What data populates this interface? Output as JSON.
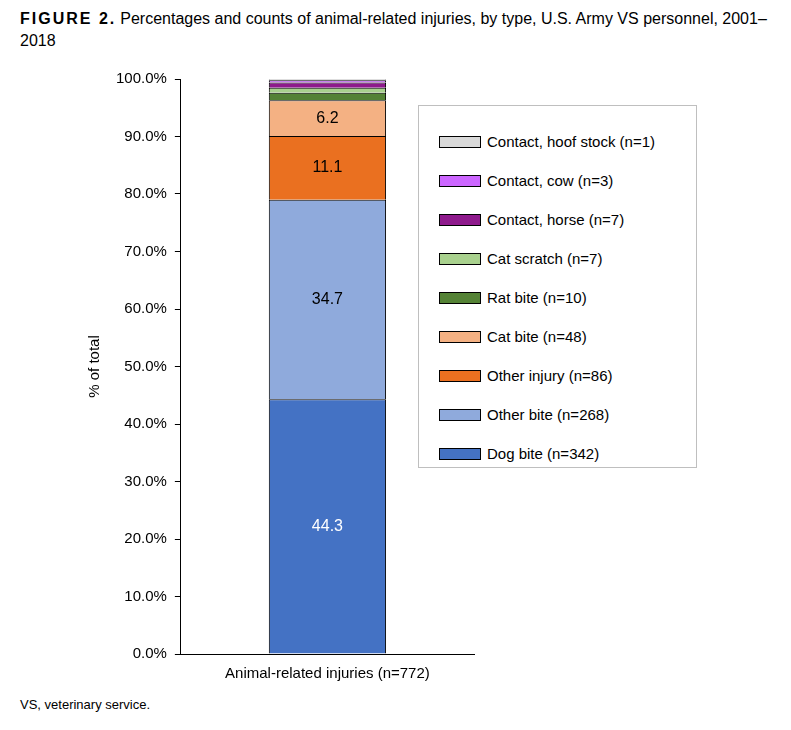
{
  "chart_data": {
    "type": "bar",
    "figure_label": "FIGURE 2.",
    "title": "Percentages and counts of animal-related injuries, by type, U.S. Army VS personnel, 2001–2018",
    "y_label": "% of total",
    "footnote": "VS, veterinary service.",
    "categories": [
      "Animal-related injuries (n=772)"
    ],
    "stacked": true,
    "grid": false,
    "ylim": [
      0,
      100
    ],
    "yticks": [
      {
        "value": 0,
        "label": "0.0%"
      },
      {
        "value": 10,
        "label": "10.0%"
      },
      {
        "value": 20,
        "label": "20.0%"
      },
      {
        "value": 30,
        "label": "30.0%"
      },
      {
        "value": 40,
        "label": "40.0%"
      },
      {
        "value": 50,
        "label": "50.0%"
      },
      {
        "value": 60,
        "label": "60.0%"
      },
      {
        "value": 70,
        "label": "70.0%"
      },
      {
        "value": 80,
        "label": "80.0%"
      },
      {
        "value": 90,
        "label": "90.0%"
      },
      {
        "value": 100,
        "label": "100.0%"
      }
    ],
    "series": [
      {
        "name": "Dog bite (n=342)",
        "color": "#4472c4",
        "values": [
          44.3
        ],
        "data_labels": true
      },
      {
        "name": "Other bite (n=268)",
        "color": "#8faadc",
        "values": [
          34.7
        ],
        "data_labels": true
      },
      {
        "name": "Other injury (n=86)",
        "color": "#ea7020",
        "values": [
          11.1
        ],
        "data_labels": true
      },
      {
        "name": "Cat bite (n=48)",
        "color": "#f4b183",
        "values": [
          6.2
        ],
        "data_labels": true
      },
      {
        "name": "Rat bite (n=10)",
        "color": "#548235",
        "values": [
          1.3
        ]
      },
      {
        "name": "Cat scratch (n=7)",
        "color": "#a9d18e",
        "values": [
          0.9
        ]
      },
      {
        "name": "Contact, horse (n=7)",
        "color": "#8e1a8c",
        "values": [
          0.9
        ]
      },
      {
        "name": "Contact, cow (n=3)",
        "color": "#cc66ff",
        "values": [
          0.4
        ]
      },
      {
        "name": "Contact, hoof stock (n=1)",
        "color": "#d9d9d9",
        "values": [
          0.1
        ]
      }
    ]
  }
}
